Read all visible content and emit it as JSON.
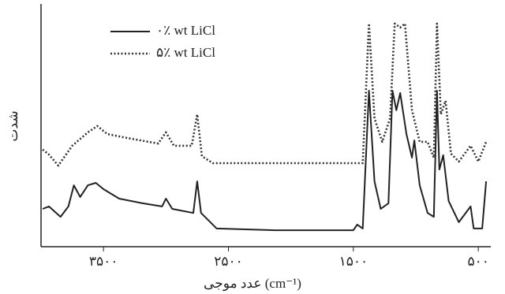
{
  "chart_data": {
    "type": "line",
    "x_label": "عدد موجی (cm⁻¹)",
    "y_label": "شدت",
    "xlim": [
      4000,
      400
    ],
    "ylim": [
      0,
      100
    ],
    "xticks": [
      {
        "value": 3500,
        "label": "۳۵۰۰"
      },
      {
        "value": 2500,
        "label": "۲۵۰۰"
      },
      {
        "value": 1500,
        "label": "۱۵۰۰"
      },
      {
        "value": 500,
        "label": "۵۰۰"
      }
    ],
    "legend": "top-left",
    "series": [
      {
        "name": "٠٪ wt LiCl",
        "color": "#222222",
        "dash": "solid",
        "x": [
          3987,
          3937,
          3844,
          3781,
          3737,
          3687,
          3625,
          3562,
          3500,
          3375,
          3187,
          3031,
          3000,
          2950,
          2781,
          2750,
          2719,
          2594,
          2125,
          1812,
          1500,
          1469,
          1425,
          1375,
          1331,
          1281,
          1219,
          1187,
          1156,
          1125,
          1075,
          1031,
          1012,
          969,
          906,
          856,
          831,
          812,
          781,
          737,
          656,
          562,
          537,
          469,
          437
        ],
        "values": [
          15.6,
          16.6,
          12.3,
          16.6,
          25.3,
          20.5,
          25.3,
          26.3,
          23.7,
          19.8,
          17.9,
          16.6,
          19.8,
          15.6,
          13.9,
          26.9,
          13.9,
          7.5,
          6.8,
          6.8,
          6.8,
          9.1,
          7.5,
          64.3,
          26.9,
          15.6,
          17.9,
          64.3,
          56.2,
          63.3,
          46.4,
          36.7,
          43.8,
          25.3,
          13.9,
          12.3,
          64.3,
          31.8,
          37.7,
          18.8,
          10.1,
          16.6,
          7.5,
          7.5,
          26.9
        ]
      },
      {
        "name": "۵٪ wt LiCl",
        "color": "#333333",
        "dash": "dotted",
        "x": [
          3987,
          3937,
          3862,
          3750,
          3625,
          3550,
          3469,
          3312,
          3062,
          3000,
          2937,
          2794,
          2750,
          2712,
          2625,
          2125,
          1500,
          1425,
          1375,
          1331,
          1269,
          1206,
          1169,
          1125,
          1087,
          1031,
          969,
          906,
          856,
          831,
          800,
          762,
          719,
          656,
          562,
          500,
          437
        ],
        "values": [
          40,
          38,
          33.4,
          41.6,
          47.1,
          49.7,
          46.4,
          44.8,
          42.5,
          47.1,
          41.6,
          41.6,
          54.5,
          37.3,
          34.4,
          34.4,
          34.4,
          34.4,
          91.9,
          52.9,
          43.2,
          52.9,
          91.9,
          90.3,
          91.9,
          56.2,
          43.2,
          43.2,
          36.7,
          91.9,
          54.5,
          60.1,
          38.3,
          35.1,
          41.6,
          35.1,
          43.2
        ]
      }
    ]
  }
}
